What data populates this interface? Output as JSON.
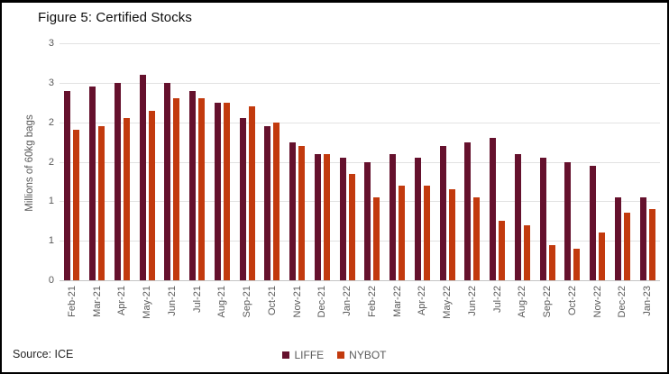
{
  "figure": {
    "title": "Figure 5: Certified Stocks",
    "source": "Source: ICE"
  },
  "chart_data": {
    "type": "bar",
    "title": "Figure 5: Certified Stocks",
    "xlabel": "",
    "ylabel": "Millions of 60kg bags",
    "ylim": [
      0,
      3
    ],
    "grid": true,
    "legend_position": "bottom-center",
    "y_ticks": [
      {
        "label": "3",
        "value": 3
      },
      {
        "label": "3",
        "value": 2.5
      },
      {
        "label": "2",
        "value": 2
      },
      {
        "label": "2",
        "value": 1.5
      },
      {
        "label": "1",
        "value": 1
      },
      {
        "label": "1",
        "value": 0.5
      },
      {
        "label": "0",
        "value": 0
      }
    ],
    "categories": [
      "Feb-21",
      "Mar-21",
      "Apr-21",
      "May-21",
      "Jun-21",
      "Jul-21",
      "Aug-21",
      "Sep-21",
      "Oct-21",
      "Nov-21",
      "Dec-21",
      "Jan-22",
      "Feb-22",
      "Mar-22",
      "Apr-22",
      "May-22",
      "Jun-22",
      "Jul-22",
      "Aug-22",
      "Sep-22",
      "Oct-22",
      "Nov-22",
      "Dec-22",
      "Jan-23"
    ],
    "series": [
      {
        "name": "LIFFE",
        "color": "#65112D",
        "values": [
          2.4,
          2.45,
          2.5,
          2.6,
          2.5,
          2.4,
          2.25,
          2.05,
          1.95,
          1.75,
          1.6,
          1.55,
          1.5,
          1.6,
          1.55,
          1.7,
          1.75,
          1.8,
          1.6,
          1.55,
          1.5,
          1.45,
          1.05,
          1.05
        ]
      },
      {
        "name": "NYBOT",
        "color": "#C23A0E",
        "values": [
          1.9,
          1.95,
          2.05,
          2.15,
          2.3,
          2.3,
          2.25,
          2.2,
          2.0,
          1.7,
          1.6,
          1.35,
          1.05,
          1.2,
          1.2,
          1.15,
          1.05,
          0.75,
          0.7,
          0.45,
          0.4,
          0.6,
          0.85,
          0.9
        ]
      }
    ]
  }
}
